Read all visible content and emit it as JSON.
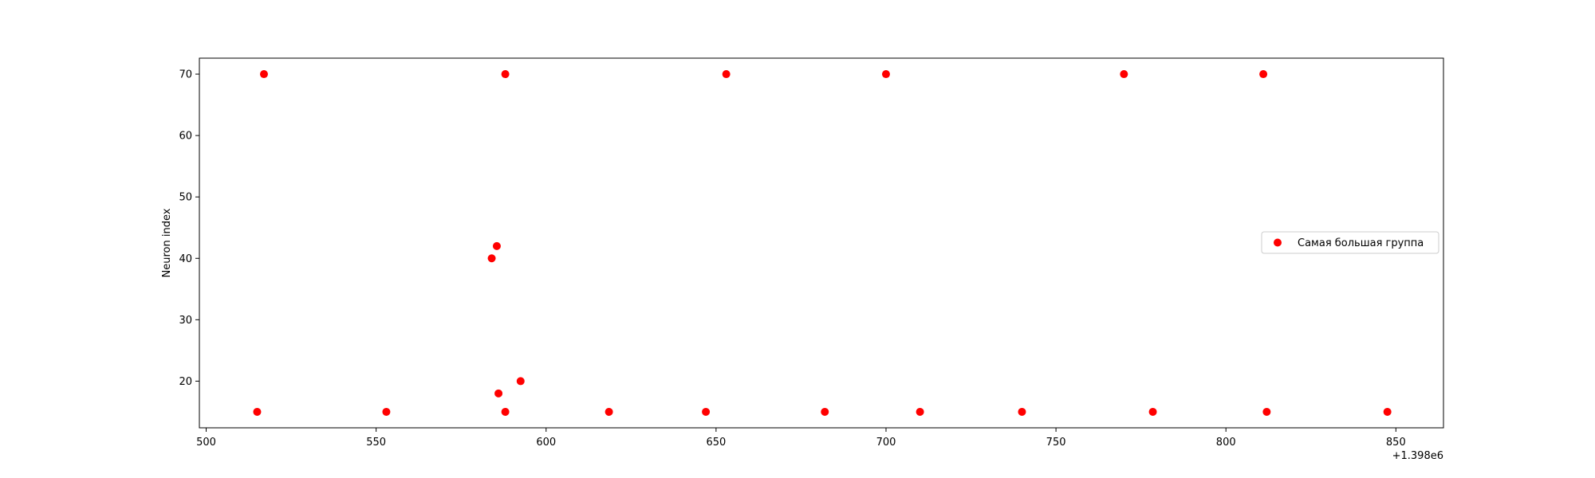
{
  "chart_data": {
    "type": "scatter",
    "title": "",
    "xlabel": "",
    "ylabel": "Neuron index",
    "x_offset_label": "+1.398e6",
    "xlim": [
      498,
      864
    ],
    "ylim": [
      12.4,
      72.6
    ],
    "xticks": [
      500,
      550,
      600,
      650,
      700,
      750,
      800,
      850
    ],
    "yticks": [
      20,
      30,
      40,
      50,
      60,
      70
    ],
    "grid": false,
    "legend_position": "center-right",
    "series": [
      {
        "name": "Самая большая группа",
        "color": "#ff0000",
        "points": [
          {
            "x": 517,
            "y": 70
          },
          {
            "x": 588,
            "y": 70
          },
          {
            "x": 653,
            "y": 70
          },
          {
            "x": 700,
            "y": 70
          },
          {
            "x": 770,
            "y": 70
          },
          {
            "x": 811,
            "y": 70
          },
          {
            "x": 585.5,
            "y": 42
          },
          {
            "x": 584,
            "y": 40
          },
          {
            "x": 592.5,
            "y": 20
          },
          {
            "x": 586,
            "y": 18
          },
          {
            "x": 515,
            "y": 15
          },
          {
            "x": 553,
            "y": 15
          },
          {
            "x": 588,
            "y": 15
          },
          {
            "x": 618.5,
            "y": 15
          },
          {
            "x": 647,
            "y": 15
          },
          {
            "x": 682,
            "y": 15
          },
          {
            "x": 710,
            "y": 15
          },
          {
            "x": 740,
            "y": 15
          },
          {
            "x": 778.5,
            "y": 15
          },
          {
            "x": 812,
            "y": 15
          },
          {
            "x": 847.5,
            "y": 15
          }
        ]
      }
    ]
  }
}
